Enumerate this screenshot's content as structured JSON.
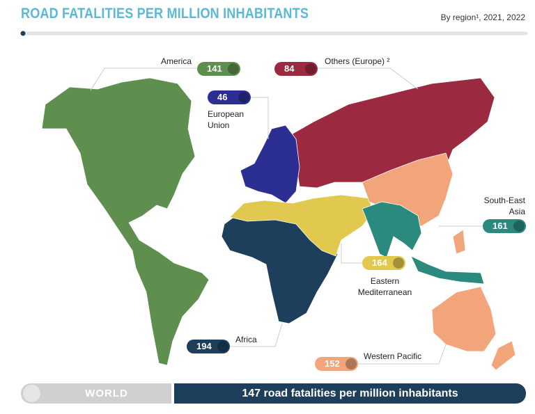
{
  "header": {
    "title": "ROAD FATALITIES PER MILLION INHABITANTS",
    "subtitle": "By region¹, 2021, 2022"
  },
  "regions": [
    {
      "name": "America",
      "value": 141,
      "color": "#5e8f4e"
    },
    {
      "name": "Others (Europe) ²",
      "value": 84,
      "color": "#9b2a40"
    },
    {
      "name": "European Union",
      "value": 46,
      "color": "#2b2f92"
    },
    {
      "name": "South-East Asia",
      "value": 161,
      "color": "#2a8a7e"
    },
    {
      "name": "Eastern Mediterranean",
      "value": 164,
      "color": "#e0c94e"
    },
    {
      "name": "Africa",
      "value": 194,
      "color": "#1d3f5c"
    },
    {
      "name": "Western Pacific",
      "value": 152,
      "color": "#f2a57a"
    }
  ],
  "footer": {
    "label": "WORLD",
    "text": "147 road fatalities per million inhabitants"
  }
}
